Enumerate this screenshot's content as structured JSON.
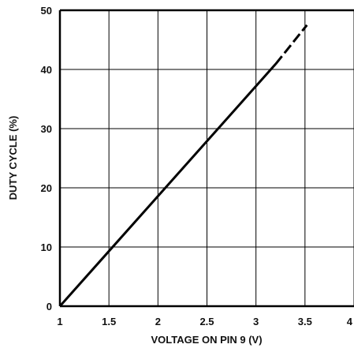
{
  "chart_data": {
    "type": "line",
    "title": "",
    "xlabel": "VOLTAGE ON PIN 9 (V)",
    "ylabel": "DUTY CYCLE (%)",
    "xlim": [
      1,
      4
    ],
    "ylim": [
      0,
      50
    ],
    "x_ticks": [
      1,
      1.5,
      2,
      2.5,
      3,
      3.5,
      4
    ],
    "x_tick_labels": [
      "1",
      "1.5",
      "2",
      "2.5",
      "3",
      "3.5",
      "4"
    ],
    "y_ticks": [
      0,
      10,
      20,
      30,
      40,
      50
    ],
    "y_tick_labels": [
      "0",
      "10",
      "20",
      "30",
      "40",
      "50"
    ],
    "grid": true,
    "series": [
      {
        "style": "solid",
        "x": [
          1.0,
          3.2
        ],
        "y": [
          0.0,
          40.9
        ]
      },
      {
        "style": "dashed",
        "x": [
          3.2,
          3.52
        ],
        "y": [
          40.9,
          47.5
        ]
      }
    ],
    "colors": {
      "line": "#000000",
      "grid": "#000000",
      "background": "#ffffff"
    }
  }
}
